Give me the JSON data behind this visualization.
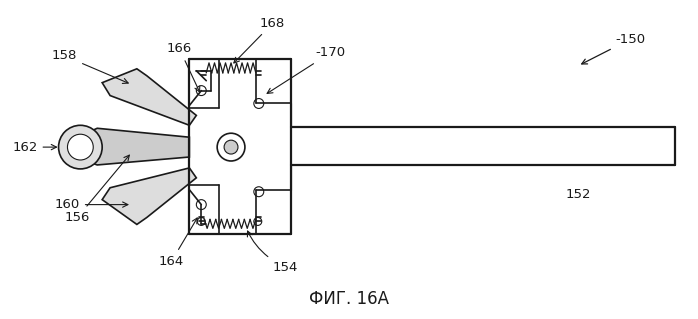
{
  "title": "ФИГ. 16А",
  "title_fontsize": 12,
  "background_color": "#ffffff",
  "line_color": "#1a1a1a",
  "fig_width": 6.98,
  "fig_height": 3.19,
  "dpi": 100
}
